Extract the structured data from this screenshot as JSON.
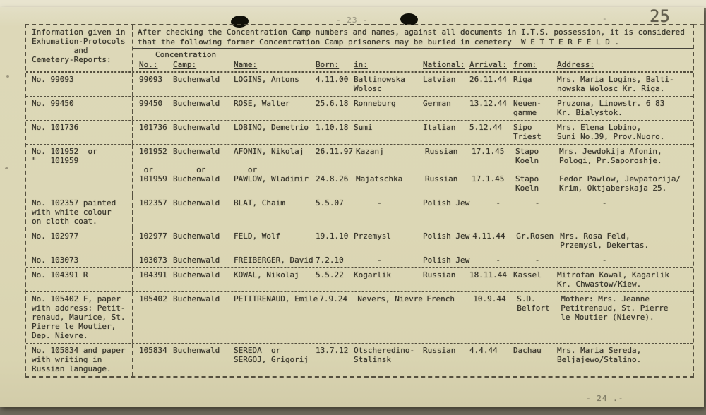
{
  "theme": {
    "paper_color": "#dcd7b5",
    "ink_color": "#38362c"
  },
  "page": {
    "page_number": "25",
    "top_faint_text": "- 23 -",
    "top_dash": "-",
    "footer_text": "- 24 .-"
  },
  "header": {
    "left_title": "Information given in\nExhumation-Protocols\n         and\nCemetery-Reports:",
    "intro_line1": "After checking the Concentration Camp numbers and names, against all documents in I.T.S. possession, it is considered",
    "intro_line2": "that the following former Concentration Camp prisoners may be buried in cemetery  W E T T E R F E L D .",
    "concentration_label": "Concentration",
    "columns": {
      "no": "No.:",
      "camp": "Camp:",
      "name": "Name:",
      "born": "Born:",
      "in": "in:",
      "national": "National:",
      "arrival": "Arrival:",
      "from": "from:",
      "address": "Address:"
    }
  },
  "rows": [
    {
      "note": "No. 99093",
      "no": "99093",
      "camp": "Buchenwald",
      "name": "LOGINS, Antons",
      "born": "4.11.00",
      "in": "Baltinowska\nWolosc",
      "national": "Latvian",
      "arrival": "26.11.44",
      "from": "Riga",
      "address": "Mrs. Maria Logins, Balti-\nnowska Wolosc Kr. Riga."
    },
    {
      "note": "No. 99450",
      "no": "99450",
      "camp": "Buchenwald",
      "name": "ROSE, Walter",
      "born": "25.6.18",
      "in": "Ronneburg",
      "national": "German",
      "arrival": "13.12.44",
      "from": "Neuen-\ngamme",
      "address": "Pruzona, Linowstr. 6 83\nKr. Bialystok."
    },
    {
      "note": "No. 101736",
      "no": "101736",
      "camp": "Buchenwald",
      "name": "LOBINO, Demetrio",
      "born": "1.10.18",
      "in": "Sumi",
      "national": "Italian",
      "arrival": "5.12.44",
      "from": "Sipo\nTriest",
      "address": "Mrs. Elena Lobino,\nSuni No.39, Prov.Nuoro."
    },
    {
      "note": "No. 101952  or\n\"   101959",
      "no": "101952\n\n or\n101959",
      "camp": "Buchenwald\n\n     or\nBuchenwald",
      "name": "AFONIN, Nikolaj\n\n   or\nPAWLOW, Wladimir",
      "born": "26.11.97\n\n\n24.8.26",
      "in": "Kazanj\n\n\nMajatschka",
      "national": "Russian\n\n\nRussian",
      "arrival": "17.1.45\n\n\n17.1.45",
      "from": "Stapo\nKoeln\n\nStapo\nKoeln",
      "address": "Mrs. Jewdokija Afonin,\nPologi, Pr.Saporoshje.\n\nFedor Pawlow, Jewpatorija/\nKrim, Oktjaberskaja 25."
    },
    {
      "note": "No. 102357 painted\nwith white colour\non cloth coat.",
      "no": "102357",
      "camp": "Buchenwald",
      "name": "BLAT, Chaim",
      "born": "5.5.07",
      "in": "     -",
      "national": "Polish Jew",
      "arrival": "     -",
      "from": "    -",
      "address": "         -"
    },
    {
      "note": "No. 102977",
      "no": "102977",
      "camp": "Buchenwald",
      "name": "FELD, Wolf",
      "born": "19.1.10",
      "in": "Przemysl",
      "national": "Polish Jew",
      "arrival": "4.11.44",
      "from": "Gr.Rosen",
      "address": "Mrs. Rosa Feld,\nPrzemysl, Dekertas."
    },
    {
      "note": "No. 103073",
      "no": "103073",
      "camp": "Buchenwald",
      "name": "FREIBERGER, David",
      "born": "7.2.10",
      "in": "     -",
      "national": "Polish Jew",
      "arrival": "     -",
      "from": "    -",
      "address": "         -"
    },
    {
      "note": "No. 104391 R",
      "no": "104391",
      "camp": "Buchenwald",
      "name": "KOWAL, Nikolaj",
      "born": "5.5.22",
      "in": "Kogarlik",
      "national": "Russian",
      "arrival": "18.11.44",
      "from": "Kassel",
      "address": "Mitrofan Kowal, Kagarlik\nKr. Chwastow/Kiew."
    },
    {
      "note": "No. 105402 F, paper\nwith address: Petit-\nrenaud, Maurice, St.\nPierre le Moutier,\nDep. Nievre.",
      "no": "105402",
      "camp": "Buchenwald",
      "name": "PETITRENAUD, Emile",
      "born": "7.9.24",
      "in": "Nevers, Nievre",
      "national": "French",
      "arrival": "10.9.44",
      "from": "S.D.\nBelfort",
      "address": "Mother: Mrs. Jeanne\nPetitrenaud, St. Pierre\nle Moutier (Nievre)."
    },
    {
      "note": "No. 105834 and paper\nwith writing in\nRussian language.",
      "no": "105834",
      "camp": "Buchenwald",
      "name": "SEREDA  or\nSERGOJ, Grigorij",
      "born": "13.7.12",
      "in": "Otscheredino-\nStalinsk",
      "national": "Russian",
      "arrival": "4.4.44",
      "from": "Dachau",
      "address": "Mrs. Maria Sereda,\nBeljajewo/Stalino."
    }
  ]
}
